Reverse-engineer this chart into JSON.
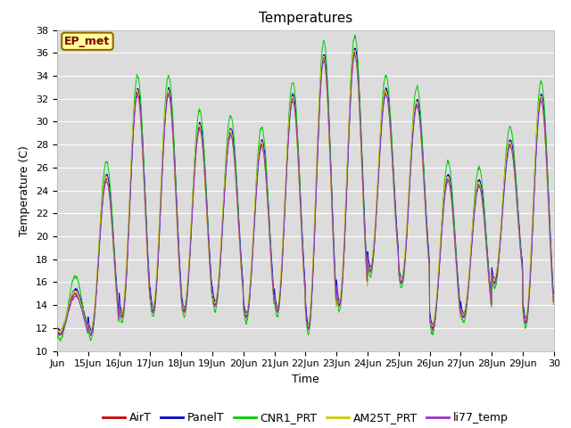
{
  "title": "Temperatures",
  "xlabel": "Time",
  "ylabel": "Temperature (C)",
  "ylim": [
    10,
    38
  ],
  "xlim": [
    14,
    30
  ],
  "x_tick_labels": [
    "Jun",
    "15Jun",
    "16Jun",
    "17Jun",
    "18Jun",
    "19Jun",
    "20Jun",
    "21Jun",
    "22Jun",
    "23Jun",
    "24Jun",
    "25Jun",
    "26Jun",
    "27Jun",
    "28Jun",
    "29Jun",
    "30"
  ],
  "x_tick_positions": [
    14,
    15,
    16,
    17,
    18,
    19,
    20,
    21,
    22,
    23,
    24,
    25,
    26,
    27,
    28,
    29,
    30
  ],
  "series": [
    "AirT",
    "PanelT",
    "CNR1_PRT",
    "AM25T_PRT",
    "li77_temp"
  ],
  "colors": [
    "#cc0000",
    "#0000cc",
    "#00cc00",
    "#cccc00",
    "#9933cc"
  ],
  "annotation_text": "EP_met",
  "annotation_bg": "#ffff99",
  "annotation_border": "#996600",
  "plot_bg": "#dcdcdc",
  "fig_bg": "#ffffff",
  "title_fontsize": 11,
  "label_fontsize": 9,
  "tick_fontsize": 8,
  "legend_fontsize": 9,
  "daily_peaks": [
    15.0,
    25.0,
    32.5,
    32.5,
    29.5,
    29.0,
    28.0,
    32.0,
    35.5,
    36.0,
    32.5,
    31.5,
    25.0,
    24.5,
    28.0,
    32.0
  ],
  "daily_mins": [
    11.5,
    11.5,
    13.0,
    13.5,
    13.5,
    14.0,
    13.0,
    13.5,
    12.0,
    14.0,
    17.0,
    16.0,
    12.0,
    13.0,
    16.0,
    12.5
  ],
  "peak_hour": 14.0,
  "min_hour": 5.0,
  "samples_per_hour": 4,
  "n_days": 16,
  "start_day": 14
}
